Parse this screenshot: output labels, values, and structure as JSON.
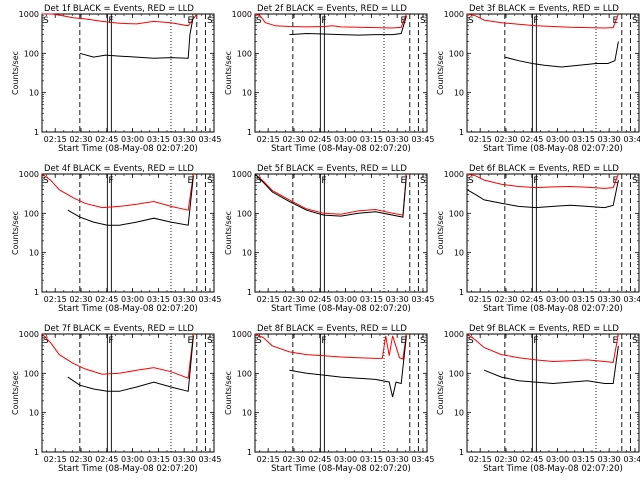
{
  "figure": {
    "shared": {
      "y_axis_label": "Counts/sec",
      "x_axis_label": "Start Time (08-May-08 02:07:20)",
      "x_tick_labels": [
        "02:15",
        "02:30",
        "02:45",
        "03:00",
        "03:15",
        "03:30",
        "03:45"
      ],
      "y_tick_labels": [
        "1",
        "10",
        "100",
        "1000"
      ],
      "marker_labels": [
        "S",
        "F",
        "E",
        "S"
      ],
      "events_color": "#000000",
      "lld_color": "#ff0000"
    }
  },
  "chart_data": [
    {
      "type": "line",
      "title": "Det 1f BLACK = Events, RED = LLD",
      "xlabel": "Start Time (08-May-08 02:07:20)",
      "ylabel": "Counts/sec",
      "x_range_minutes": [
        0,
        100
      ],
      "ylim": [
        1,
        1000
      ],
      "y_scale": "log",
      "grid": false,
      "x_ticks": [
        "02:15",
        "02:30",
        "02:45",
        "03:00",
        "03:15",
        "03:30",
        "03:45"
      ],
      "y_ticks": [
        1,
        10,
        100,
        1000
      ],
      "markers": [
        {
          "label": "S",
          "minute": 0
        },
        {
          "label": "F",
          "minute": 38
        },
        {
          "label": "E",
          "minute": 84
        },
        {
          "label": "S",
          "minute": 97
        }
      ],
      "series": [
        {
          "name": "Events",
          "color": "#000000",
          "x": [
            22,
            30,
            37,
            45,
            55,
            65,
            75,
            85,
            86,
            88
          ],
          "y": [
            100,
            80,
            90,
            85,
            80,
            75,
            78,
            75,
            300,
            900
          ]
        },
        {
          "name": "LLD",
          "color": "#ff0000",
          "x": [
            0,
            6,
            12,
            18,
            25,
            35,
            45,
            55,
            65,
            75,
            85,
            90
          ],
          "y": [
            1000,
            1000,
            900,
            800,
            750,
            650,
            580,
            560,
            650,
            600,
            500,
            1000
          ]
        }
      ]
    },
    {
      "type": "line",
      "title": "Det 2f BLACK = Events, RED = LLD",
      "xlabel": "Start Time (08-May-08 02:07:20)",
      "ylabel": "Counts/sec",
      "x_range_minutes": [
        0,
        100
      ],
      "ylim": [
        1,
        1000
      ],
      "y_scale": "log",
      "grid": false,
      "x_ticks": [
        "02:15",
        "02:30",
        "02:45",
        "03:00",
        "03:15",
        "03:30",
        "03:45"
      ],
      "y_ticks": [
        1,
        10,
        100,
        1000
      ],
      "markers": [
        {
          "label": "S",
          "minute": 0
        },
        {
          "label": "F",
          "minute": 38
        },
        {
          "label": "E",
          "minute": 84
        },
        {
          "label": "S",
          "minute": 97
        }
      ],
      "series": [
        {
          "name": "Events",
          "color": "#000000",
          "x": [
            20,
            30,
            40,
            50,
            60,
            70,
            80,
            85,
            88
          ],
          "y": [
            300,
            320,
            310,
            300,
            290,
            300,
            300,
            320,
            900
          ]
        },
        {
          "name": "LLD",
          "color": "#ff0000",
          "x": [
            0,
            3,
            6,
            12,
            20,
            30,
            40,
            45,
            50,
            60,
            70,
            80,
            85,
            88
          ],
          "y": [
            1000,
            900,
            600,
            500,
            480,
            470,
            480,
            500,
            470,
            460,
            450,
            440,
            460,
            1000
          ]
        }
      ]
    },
    {
      "type": "line",
      "title": "Det 3f BLACK = Events, RED = LLD",
      "xlabel": "Start Time (08-May-08 02:07:20)",
      "ylabel": "Counts/sec",
      "x_range_minutes": [
        0,
        100
      ],
      "ylim": [
        1,
        1000
      ],
      "y_scale": "log",
      "grid": false,
      "x_ticks": [
        "02:15",
        "02:30",
        "02:45",
        "03:00",
        "03:15",
        "03:30",
        "03:45"
      ],
      "y_ticks": [
        1,
        10,
        100,
        1000
      ],
      "markers": [
        {
          "label": "S",
          "minute": 0
        },
        {
          "label": "F",
          "minute": 38
        },
        {
          "label": "E",
          "minute": 84
        },
        {
          "label": "S",
          "minute": 97
        }
      ],
      "series": [
        {
          "name": "Events",
          "color": "#000000",
          "x": [
            22,
            30,
            38,
            45,
            55,
            65,
            75,
            82,
            86,
            88
          ],
          "y": [
            80,
            65,
            55,
            50,
            45,
            50,
            55,
            55,
            65,
            200
          ]
        },
        {
          "name": "LLD",
          "color": "#ff0000",
          "x": [
            0,
            5,
            10,
            20,
            30,
            40,
            50,
            60,
            70,
            80,
            85,
            88
          ],
          "y": [
            1000,
            900,
            700,
            600,
            550,
            500,
            480,
            460,
            450,
            440,
            450,
            1000
          ]
        }
      ]
    },
    {
      "type": "line",
      "title": "Det 4f BLACK = Events, RED = LLD",
      "xlabel": "Start Time (08-May-08 02:07:20)",
      "ylabel": "Counts/sec",
      "x_range_minutes": [
        0,
        100
      ],
      "ylim": [
        1,
        1000
      ],
      "y_scale": "log",
      "grid": false,
      "x_ticks": [
        "02:15",
        "02:30",
        "02:45",
        "03:00",
        "03:15",
        "03:30",
        "03:45"
      ],
      "y_ticks": [
        1,
        10,
        100,
        1000
      ],
      "markers": [
        {
          "label": "S",
          "minute": 0
        },
        {
          "label": "F",
          "minute": 38
        },
        {
          "label": "E",
          "minute": 84
        },
        {
          "label": "S",
          "minute": 97
        }
      ],
      "series": [
        {
          "name": "Events",
          "color": "#000000",
          "x": [
            15,
            22,
            30,
            38,
            45,
            55,
            65,
            75,
            85,
            88
          ],
          "y": [
            120,
            80,
            60,
            50,
            50,
            60,
            75,
            60,
            50,
            900
          ]
        },
        {
          "name": "LLD",
          "color": "#ff0000",
          "x": [
            0,
            5,
            10,
            18,
            25,
            35,
            45,
            55,
            65,
            75,
            85,
            88
          ],
          "y": [
            1000,
            700,
            400,
            250,
            180,
            140,
            150,
            170,
            200,
            150,
            120,
            1000
          ]
        }
      ]
    },
    {
      "type": "line",
      "title": "Det 5f BLACK = Events, RED = LLD",
      "xlabel": "Start Time (08-May-08 02:07:20)",
      "ylabel": "Counts/sec",
      "x_range_minutes": [
        0,
        100
      ],
      "ylim": [
        1,
        1000
      ],
      "y_scale": "log",
      "grid": false,
      "x_ticks": [
        "02:15",
        "02:30",
        "02:45",
        "03:00",
        "03:15",
        "03:30",
        "03:45"
      ],
      "y_ticks": [
        1,
        10,
        100,
        1000
      ],
      "markers": [
        {
          "label": "S",
          "minute": 0
        },
        {
          "label": "F",
          "minute": 38
        },
        {
          "label": "E",
          "minute": 84
        },
        {
          "label": "S",
          "minute": 97
        }
      ],
      "series": [
        {
          "name": "Events",
          "color": "#000000",
          "x": [
            0,
            5,
            10,
            20,
            30,
            40,
            50,
            60,
            70,
            80,
            86,
            88
          ],
          "y": [
            1000,
            600,
            350,
            200,
            120,
            90,
            85,
            100,
            110,
            90,
            80,
            900
          ]
        },
        {
          "name": "LLD",
          "color": "#ff0000",
          "x": [
            0,
            5,
            10,
            20,
            30,
            40,
            50,
            60,
            70,
            80,
            86,
            88
          ],
          "y": [
            1000,
            650,
            380,
            220,
            130,
            100,
            95,
            115,
            125,
            100,
            90,
            1000
          ]
        }
      ]
    },
    {
      "type": "line",
      "title": "Det 6f BLACK = Events, RED = LLD",
      "xlabel": "Start Time (08-May-08 02:07:20)",
      "ylabel": "Counts/sec",
      "x_range_minutes": [
        0,
        100
      ],
      "ylim": [
        1,
        1000
      ],
      "y_scale": "log",
      "grid": false,
      "x_ticks": [
        "02:15",
        "02:30",
        "02:45",
        "03:00",
        "03:15",
        "03:30",
        "03:45"
      ],
      "y_ticks": [
        1,
        10,
        100,
        1000
      ],
      "markers": [
        {
          "label": "S",
          "minute": 0
        },
        {
          "label": "F",
          "minute": 38
        },
        {
          "label": "E",
          "minute": 84
        },
        {
          "label": "S",
          "minute": 97
        }
      ],
      "series": [
        {
          "name": "Events",
          "color": "#000000",
          "x": [
            0,
            5,
            10,
            20,
            30,
            40,
            50,
            60,
            70,
            80,
            85,
            88
          ],
          "y": [
            400,
            300,
            220,
            180,
            150,
            140,
            150,
            160,
            150,
            140,
            160,
            700
          ]
        },
        {
          "name": "LLD",
          "color": "#ff0000",
          "x": [
            0,
            5,
            10,
            20,
            30,
            40,
            50,
            60,
            70,
            80,
            85,
            88
          ],
          "y": [
            1000,
            900,
            700,
            550,
            480,
            450,
            470,
            480,
            460,
            430,
            450,
            1000
          ]
        }
      ]
    },
    {
      "type": "line",
      "title": "Det 7f BLACK = Events, RED = LLD",
      "xlabel": "Start Time (08-May-08 02:07:20)",
      "ylabel": "Counts/sec",
      "x_range_minutes": [
        0,
        100
      ],
      "ylim": [
        1,
        1000
      ],
      "y_scale": "log",
      "grid": false,
      "x_ticks": [
        "02:15",
        "02:30",
        "02:45",
        "03:00",
        "03:15",
        "03:30",
        "03:45"
      ],
      "y_ticks": [
        1,
        10,
        100,
        1000
      ],
      "markers": [
        {
          "label": "S",
          "minute": 0
        },
        {
          "label": "F",
          "minute": 38
        },
        {
          "label": "E",
          "minute": 84
        },
        {
          "label": "S",
          "minute": 97
        }
      ],
      "series": [
        {
          "name": "Events",
          "color": "#000000",
          "x": [
            15,
            22,
            30,
            38,
            45,
            55,
            65,
            75,
            85,
            88
          ],
          "y": [
            80,
            50,
            40,
            35,
            35,
            45,
            60,
            45,
            35,
            900
          ]
        },
        {
          "name": "LLD",
          "color": "#ff0000",
          "x": [
            0,
            5,
            10,
            18,
            25,
            35,
            45,
            55,
            65,
            75,
            85,
            88
          ],
          "y": [
            1000,
            600,
            300,
            180,
            130,
            95,
            100,
            120,
            140,
            110,
            75,
            1000
          ]
        }
      ]
    },
    {
      "type": "line",
      "title": "Det 8f BLACK = Events, RED = LLD",
      "xlabel": "Start Time (08-May-08 02:07:20)",
      "ylabel": "Counts/sec",
      "x_range_minutes": [
        0,
        100
      ],
      "ylim": [
        1,
        1000
      ],
      "y_scale": "log",
      "grid": false,
      "x_ticks": [
        "02:15",
        "02:30",
        "02:45",
        "03:00",
        "03:15",
        "03:30",
        "03:45"
      ],
      "y_ticks": [
        1,
        10,
        100,
        1000
      ],
      "markers": [
        {
          "label": "S",
          "minute": 0
        },
        {
          "label": "F",
          "minute": 38
        },
        {
          "label": "E",
          "minute": 84
        },
        {
          "label": "S",
          "minute": 97
        }
      ],
      "series": [
        {
          "name": "Events",
          "color": "#000000",
          "x": [
            20,
            30,
            40,
            50,
            60,
            70,
            78,
            80,
            82,
            85,
            88
          ],
          "y": [
            120,
            100,
            90,
            80,
            75,
            70,
            60,
            25,
            60,
            55,
            900
          ]
        },
        {
          "name": "LLD",
          "color": "#ff0000",
          "x": [
            0,
            5,
            10,
            20,
            30,
            40,
            50,
            60,
            70,
            74,
            76,
            78,
            80,
            84,
            86,
            88
          ],
          "y": [
            1000,
            800,
            500,
            350,
            300,
            280,
            260,
            250,
            240,
            240,
            900,
            280,
            900,
            250,
            230,
            1000
          ]
        }
      ]
    },
    {
      "type": "line",
      "title": "Det 9f BLACK = Events, RED = LLD",
      "xlabel": "Start Time (08-May-08 02:07:20)",
      "ylabel": "Counts/sec",
      "x_range_minutes": [
        0,
        100
      ],
      "ylim": [
        1,
        1000
      ],
      "y_scale": "log",
      "grid": false,
      "x_ticks": [
        "02:15",
        "02:30",
        "02:45",
        "03:00",
        "03:15",
        "03:30",
        "03:45"
      ],
      "y_ticks": [
        1,
        10,
        100,
        1000
      ],
      "markers": [
        {
          "label": "S",
          "minute": 0
        },
        {
          "label": "F",
          "minute": 38
        },
        {
          "label": "E",
          "minute": 84
        },
        {
          "label": "S",
          "minute": 97
        }
      ],
      "series": [
        {
          "name": "Events",
          "color": "#000000",
          "x": [
            10,
            20,
            30,
            40,
            50,
            60,
            70,
            80,
            85,
            88
          ],
          "y": [
            120,
            80,
            65,
            60,
            55,
            60,
            65,
            55,
            55,
            500
          ]
        },
        {
          "name": "LLD",
          "color": "#ff0000",
          "x": [
            0,
            5,
            10,
            20,
            30,
            40,
            50,
            60,
            70,
            80,
            85,
            88
          ],
          "y": [
            1000,
            700,
            450,
            300,
            250,
            220,
            200,
            210,
            220,
            200,
            190,
            1000
          ]
        }
      ]
    }
  ]
}
